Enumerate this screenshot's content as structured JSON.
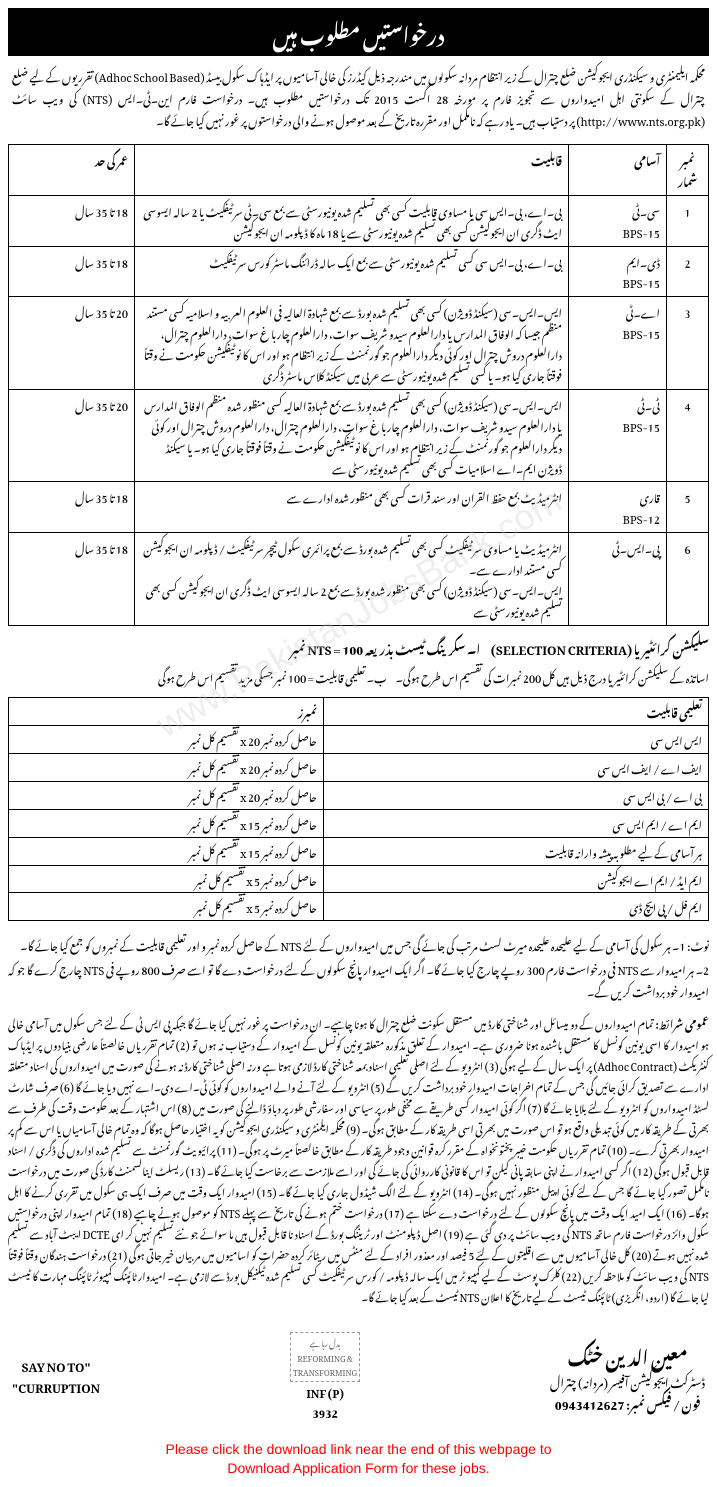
{
  "header": {
    "title": "درخواستیں مطلوب ہیں"
  },
  "intro": "محکمہ ایلیمنٹری و سیکنڈری ایجوکیشن ضلع چترال کے زیر انتظام مردانہ سکولوں میں مندرجہ ذیل کیڈرز کی خالی آسامیوں پر ایڈہاک سکول بیسڈ (Adhoc School Based) تقرریوں کے لیے ضلع چترال کے سکونتی اہل امیدواروں سے تجویز فارم پر مورخہ 28 اگست 2015 تک درخواستیں مطلوب ہیں۔ درخواست فارم این۔ٹی۔ایس (NTS) کی ویب سائٹ (http://www.nts.org.pk) پر دستیاب ہیں۔ یاد رہے کہ نامکمل اور مقررہ تاریخ کے بعد موصول ہونے والی درخواستوں پر غور نہیں کیا جائے گا۔",
  "posts_table": {
    "headers": {
      "serial": "نمبر شمار",
      "post": "آسامی",
      "qualification": "قابلیت",
      "age": "عمر کی حد"
    },
    "rows": [
      {
        "serial": "1",
        "post": "سی۔ٹی\nBPS-15",
        "qualification": "بی۔اے، بی۔ایس سی یا مساوی قابلیت کسی بھی تسلیم شدہ یونیورسٹی سے بمع سی۔ٹی سرٹیفکیٹ یا 2 سالہ ایسوسی ایٹ ڈگری ان ایجوکیشن کسی بھی تسلیم شدہ یونیورسٹی سے یا 18 ماہ کا ڈپلومہ ان ایجوکیشن",
        "age": "18 تا 35 سال"
      },
      {
        "serial": "2",
        "post": "ڈی۔ایم\nBPS-15",
        "qualification": "بی۔اے، بی۔ایس سی کسی تسلیم شدہ یونیورسٹی سے بمع ایک سالہ ڈرائنگ ماسٹر کورس سرٹیفکیٹ",
        "age": "18 تا 35 سال"
      },
      {
        "serial": "3",
        "post": "اے۔ٹی\nBPS-15",
        "qualification": "ایس۔ایس۔سی (سیکنڈ ڈویژن) کسی بھی تسلیم شدہ بورڈ سے بمع شہادۃ العالیہ فی العلوم العربیہ و اسلامیہ کسی مستند منظم جیسا کہ الوفاق المدارس یا دارالعلوم سیدو شریف سوات، دارالعلوم چاربا غ سوات، دارالعلوم چترال، دارالعلوم دروش چترال اور کوئی دیگر دارالعلوم جو گورنمنٹ کے زیر انتظام ہو اور اس کا نوٹیفکیشن حکومت نے وقتاً فوقتاً جاری کیا ہو۔ یا کسی تسلیم شدہ یونیورسٹی سے عربی میں سیکنڈ کلاس ماسٹر ڈگری",
        "age": "20 تا 35 سال"
      },
      {
        "serial": "4",
        "post": "ٹی۔ٹی\nBPS-15",
        "qualification": "ایس۔ایس۔سی (سیکنڈ ڈویژن) کسی بھی تسلیم شدہ بورڈ سے بمع شہادۃ العالیہ کسی منظور شدہ منظم الوفاق المدارس یا دارالعلوم سیدو شریف سوات، دارالعلوم چاربا غ سوات، دارالعلوم چترال، دارالعلوم دروش چترال اور کوئی دیگر دارالعلوم جو گورنمنٹ کے زیر انتظام ہو اور اس کا نوٹیفکیشن حکومت نے وقتاً فوقتاً جاری کیا ہو۔ یا سیکنڈ ڈویژن ایم۔اے اسلامیات کسی بھی تسلیم شدہ یونیورسٹی سے",
        "age": "20 تا 35 سال"
      },
      {
        "serial": "5",
        "post": "قاری\nBPS-12",
        "qualification": "انٹرمیڈیٹ بمع حفظ القران اور سند قرات کسی بھی منظور شدہ ادارے سے",
        "age": "18 تا 35 سال"
      },
      {
        "serial": "6",
        "post": "پی۔ایس۔ٹی",
        "qualification": "انٹرمیڈیٹ یا مساوی سرٹیفکیٹ کسی بھی تسلیم شدہ بورڈ سے بمع پرائمری سکول ٹیچر سرٹیفکیٹ / ڈپلومہ ان ایجوکیشن کسی مستند ادارے سے۔\nایس۔ایس۔سی (سیکنڈ ڈویژن) کسی بھی منظور شدہ بورڈ سے بمع 2 سالہ ایسوسی ایٹ ڈگری ان ایجوکیشن کسی بھی تسلیم شدہ یونیورسٹی سے",
        "age": "18 تا 35 سال"
      }
    ]
  },
  "selection": {
    "title": "سلیکشن کرائٹیریا (SELECTION CRITERIA)",
    "intro": "اساتذہ کے سلیکشن کرائٹیریا درج ذیل ہیں کل 200 نمبرات کی تقسیم اس طرح ہوگی۔",
    "criteria_a": "ا۔ سکرینگ ٹیسٹ بذریعہ NTS = 100 نمبر",
    "criteria_b": "ب۔ تعلیمی قابلیت = 100 نمبر جسکی مزید تقسیم اس طرح ہوگی",
    "headers": {
      "qualification": "تعلیمی قابلیت",
      "marks": "نمبرز"
    },
    "rows": [
      {
        "qual": "ایس ایس سی",
        "marks": "حاصل کردہ نمبر x 20 تقسیم کل نمبر"
      },
      {
        "qual": "ایف اے / ایف ایس سی",
        "marks": "حاصل کردہ نمبر x 20 تقسیم کل نمبر"
      },
      {
        "qual": "بی اے / بی ایس سی",
        "marks": "حاصل کردہ نمبر x 20 تقسیم کل نمبر"
      },
      {
        "qual": "ایم اے / ایم ایس سی",
        "marks": "حاصل کردہ نمبر x 15 تقسیم کل نمبر"
      },
      {
        "qual": "ہر آسامی کے لیے مطلوبہ پیشہ وارانہ قابلیت",
        "marks": "حاصل کردہ نمبر x 15 تقسیم کل نمبر"
      },
      {
        "qual": "ایم ایڈ / ایم اے ایجوکیشن",
        "marks": "حاصل کردہ نمبر x 5 تقسیم کل نمبر"
      },
      {
        "qual": "ایم فل / پی ایچ ڈی",
        "marks": "حاصل کردہ نمبر x 5 تقسیم کل نمبر"
      }
    ]
  },
  "notes": {
    "note1": "نوٹ: 1۔ ہر سکول کی آسامی کے لیے علیحدہ علیحدہ میرٹ لسٹ مرتب کی جائے گی جس میں امیدواروں کے لئے NTS کے حاصل کردہ نمبر و اور تعلیمی قابلیت کے نمبروں کو جمع کیا جائے گا۔",
    "note2": "2۔ ہر امیدوار سے NTS فی درخواست فارم 300 روپے چارج کیا جائے گا۔ اگر ایک امیدوار پانچ سکولوں کے لئے درخواست دے گا تو اسے صرف 800 روپے فی NTS چارج کرے گا جو کہ امیدوار خود برداشت کریں گے۔"
  },
  "general": {
    "heading": "عمومی شرائط:",
    "text": "تمام امیدواروں کے دو میسائل اور شناختی کارڈ میں مستقل سکونت ضلع چترال کا ہونا چاہیے۔ ان درخواست پر غور نہیں کیا جائے گا جبکہ پی ایس ٹی کے لئے جس سکول میں آسامی خالی ہو امیدوار کا اسی یونین کونسل کا مستقل باشندہ ہونا ضروری ہے۔ امیدوار کے تعلق مذکورہ متعلقہ یونین کونسل کے امیدوار کے دستیاب نہ ہوں تو (2) تمام تقرریاں خالصتاً عارضی بنیادوں پر ایڈہاک کنٹریکٹ (Adhoc Contract) پر ایک سال کے لیے ہوگی (3) انٹرویو کے لئے اصلی تعلیمی اسناد بمعہ شناختی کارڈ لازمی ہوتا ہے ورنہ اصلی شناختی کارڈ نہ ہونے کی صورت میں امیدواروں کی اسناد متعلقہ ادارے سے تصدیق کرائی جائیں گی جس کے تمام اخراجات امیدوار خود برداشت کریں گے (5) انٹرویو کے لئے آنے والے امیدواروں کو کوئی ٹی۔اے دی۔اے نہیں دیا جائے گا (6) صرف شارٹ لسٹڈ امیدواروں کو انٹرویو کے لئے بلایا جائے گا (7) اگر کوئی امیدوار کسی طریقے سے مخفی طور پر سیاسی اور سفارشی طور پر دباؤ ڈالنے کی صورت میں (8) اس اشتہار کے بعد حکومت وقت کی طرف سے بھرتی کے طریقہ کار میں کوئی تبدیلی واقع ہو تو اس صورت میں بھرتی اسی طریقہ کار کے مطابق ہوگی۔ (9) محکمہ ایلمنٹری و سیکنڈری ایجوکیشن کو یہ اختیار حاصل ہوگا کہ وہ تمام خالی آسامیاں یا اس سے کم پر امیدوار بھرتی کرے۔ (10) تمام تقرریاں حکومت خیبر پختونخواہ کے مقرر کرہ قوانین وجود طریقہ کار کے مطابق خالصتاً میرٹ پر ہوگی۔ (11) پرائیویٹ گورنمنٹ سے تسلیم شدہ اداروں کی ڈگری / اسناد قابل قبول ہوگی (12) اگر کسی امیدوار نے اپنی سابقہ پانی کیلن تو اس کا قانونی کارروائی کی جائے گی اور اسے ملازمت سے برخاست کیا جائے گا۔ (13) ریسلٹ اینالسمنٹ کارڈ کی صورت میں درخواست نامکمل تصور کیا جائے گا جس کے لئے کوئی اپیل منظور نہیں ہوگی۔ (14) انٹرویو کے لئے الگ شیڈول جاری کیا جائے گا۔ (15) امیدوار ایک وقت میں صرف ایک ہی سکول میں تقرری کرنے کا اہل ہوگا۔ (16) ایک امید ایک وقت میں پانچ سکولوں کے لئے درخواست دے سکتا ہے (17) درخواست ختم ہونے کی تاریخ سے پہلے NTS کو موصول ہونے چاہیے (18) تمام امیدوار اپنی درخواستیں سکول وائز درخواست فارم ساتھ NTS کی ویب سائٹ پر دی گئی ہے (19) اصل ڈپلومنٹ اور ٹریننگ بورڈ کے اسناد نا قابل قبول ہیں ما سوائے جو نئے تسلیم نہیں کر ای DCTE ایبٹ آباد سے تسلیم شدہ نہیں ہوتے (20) کل خالی آسامیوں میں سے اقلیتوں کے لئے 5 فیصد اور معذور افراد کے لئے منٹس میں ریٹائر کردہ حضرات کو اسامیوں میں مربیان خیر جاتی ہوگی (21) درخواست ہندگان وقتاً فوقتاً NTS کی ویب سائٹ کو ملاحظہ کریں (22) کلرک پوسٹ کے لیے کمپیو ٹر میں ایک سالہ ڈپلومہ / کورس سرٹیفکیٹ کسی تسلیم شدہ ٹیکنیکل بورڈ سے لازمی ہے۔ امیدوار ٹائپنگ کمپیوٹر ٹائپنگ مہارت کا ٹیسٹ لیا جائے گا (اردو، انگریزی) ٹائپنگ ٹیسٹ کے لیے تاریخ کا اعلان NTS ٹیسٹ کے بعد کیا جائے گا۔"
  },
  "footer": {
    "signature": {
      "name": "معین الدین خٹک",
      "title": "ڈسٹرکٹ ایجوکیشن آفیسر (مردانہ) چترال",
      "phone": "فون / فیکس نمبر: 0943412627"
    },
    "inf": "INF (P)\n3932",
    "logo_text": "بدل رہا ہے\nREFORMING & TRANSFORMING",
    "say_no": "\"SAY NO TO\nCURRUPTION\""
  },
  "download_note": "Please click the download link near the end of this webpage to\nDownload Application Form for these jobs.",
  "watermark": "www.PakistanJobsBank.com",
  "colors": {
    "background": "#ffffff",
    "text": "#000000",
    "header_bg": "#000000",
    "header_text": "#ffffff",
    "download_text": "#ff0000",
    "border": "#000000"
  },
  "typography": {
    "body_font": "Noto Nastaliq Urdu",
    "body_size": 11,
    "header_size": 20,
    "table_line_height": 1.9
  }
}
